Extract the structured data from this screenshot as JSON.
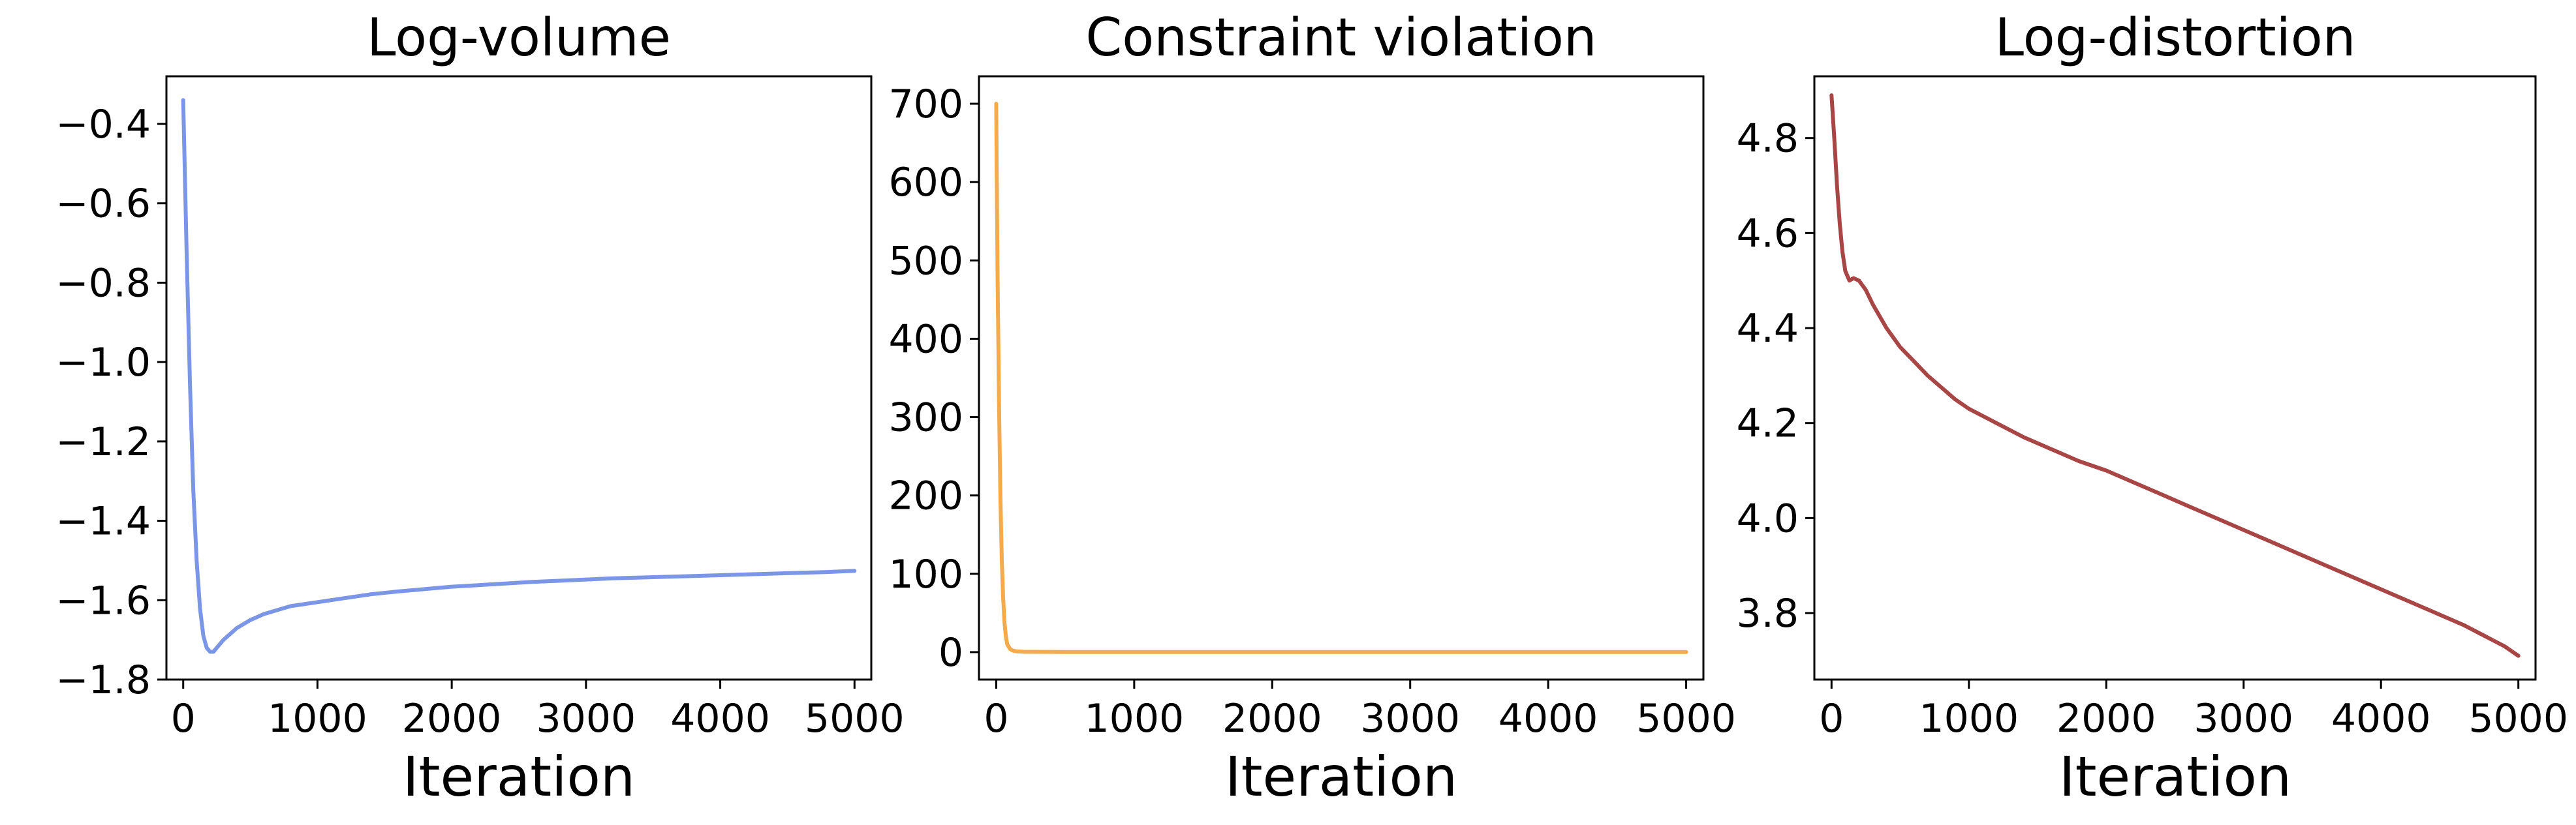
{
  "chart_data": [
    {
      "type": "line",
      "title": "Log-volume",
      "xlabel": "Iteration",
      "ylabel": "",
      "xlim": [
        -125,
        5125
      ],
      "ylim": [
        -1.8,
        -0.28
      ],
      "xticks": [
        0,
        1000,
        2000,
        3000,
        4000,
        5000
      ],
      "xtick_labels": [
        "0",
        "1000",
        "2000",
        "3000",
        "4000",
        "5000"
      ],
      "yticks": [
        -0.4,
        -0.6,
        -0.8,
        -1.0,
        -1.2,
        -1.4,
        -1.6,
        -1.8
      ],
      "ytick_labels": [
        "−0.4",
        "−0.6",
        "−0.8",
        "−1.0",
        "−1.2",
        "−1.4",
        "−1.6",
        "−1.8"
      ],
      "grid": false,
      "series": [
        {
          "color": "#7b96e6",
          "x": [
            0,
            25,
            50,
            75,
            100,
            125,
            150,
            175,
            200,
            225,
            250,
            300,
            350,
            400,
            500,
            600,
            700,
            800,
            900,
            1000,
            1200,
            1400,
            1600,
            1800,
            2000,
            2200,
            2400,
            2600,
            2800,
            3000,
            3200,
            3400,
            3600,
            3800,
            4000,
            4200,
            4400,
            4600,
            4800,
            5000
          ],
          "y": [
            -0.34,
            -0.72,
            -1.05,
            -1.32,
            -1.5,
            -1.62,
            -1.69,
            -1.72,
            -1.73,
            -1.73,
            -1.72,
            -1.7,
            -1.685,
            -1.67,
            -1.65,
            -1.635,
            -1.625,
            -1.615,
            -1.61,
            -1.605,
            -1.595,
            -1.585,
            -1.578,
            -1.572,
            -1.566,
            -1.562,
            -1.558,
            -1.554,
            -1.551,
            -1.548,
            -1.545,
            -1.543,
            -1.541,
            -1.539,
            -1.537,
            -1.535,
            -1.533,
            -1.531,
            -1.529,
            -1.526
          ]
        }
      ]
    },
    {
      "type": "line",
      "title": "Constraint violation",
      "xlabel": "Iteration",
      "ylabel": "",
      "xlim": [
        -125,
        5125
      ],
      "ylim": [
        -35,
        735
      ],
      "xticks": [
        0,
        1000,
        2000,
        3000,
        4000,
        5000
      ],
      "xtick_labels": [
        "0",
        "1000",
        "2000",
        "3000",
        "4000",
        "5000"
      ],
      "yticks": [
        0,
        100,
        200,
        300,
        400,
        500,
        600,
        700
      ],
      "ytick_labels": [
        "0",
        "100",
        "200",
        "300",
        "400",
        "500",
        "600",
        "700"
      ],
      "grid": false,
      "series": [
        {
          "color": "#f5ab4c",
          "x": [
            0,
            10,
            20,
            30,
            40,
            50,
            60,
            70,
            80,
            100,
            120,
            150,
            200,
            500,
            1000,
            2000,
            3000,
            4000,
            5000
          ],
          "y": [
            700,
            480,
            320,
            200,
            120,
            70,
            38,
            20,
            10,
            4,
            2,
            1,
            0.5,
            0.2,
            0.1,
            0.1,
            0.1,
            0.1,
            0.1
          ]
        }
      ]
    },
    {
      "type": "line",
      "title": "Log-distortion",
      "xlabel": "Iteration",
      "ylabel": "",
      "xlim": [
        -125,
        5125
      ],
      "ylim": [
        3.66,
        4.93
      ],
      "xticks": [
        0,
        1000,
        2000,
        3000,
        4000,
        5000
      ],
      "xtick_labels": [
        "0",
        "1000",
        "2000",
        "3000",
        "4000",
        "5000"
      ],
      "yticks": [
        3.8,
        4.0,
        4.2,
        4.4,
        4.6,
        4.8
      ],
      "ytick_labels": [
        "3.8",
        "4.0",
        "4.2",
        "4.4",
        "4.6",
        "4.8"
      ],
      "grid": false,
      "series": [
        {
          "color": "#a84545",
          "x": [
            0,
            20,
            40,
            60,
            80,
            100,
            130,
            160,
            200,
            250,
            300,
            400,
            500,
            600,
            700,
            800,
            900,
            1000,
            1200,
            1400,
            1600,
            1800,
            2000,
            2200,
            2400,
            2600,
            2800,
            3000,
            3200,
            3400,
            3600,
            3800,
            4000,
            4200,
            4400,
            4600,
            4800,
            4900,
            5000
          ],
          "y": [
            4.89,
            4.8,
            4.7,
            4.62,
            4.56,
            4.52,
            4.5,
            4.505,
            4.5,
            4.48,
            4.45,
            4.4,
            4.36,
            4.33,
            4.3,
            4.275,
            4.25,
            4.23,
            4.2,
            4.17,
            4.145,
            4.12,
            4.1,
            4.075,
            4.05,
            4.025,
            4.0,
            3.975,
            3.95,
            3.925,
            3.9,
            3.875,
            3.85,
            3.825,
            3.8,
            3.775,
            3.745,
            3.73,
            3.71
          ]
        }
      ]
    }
  ]
}
